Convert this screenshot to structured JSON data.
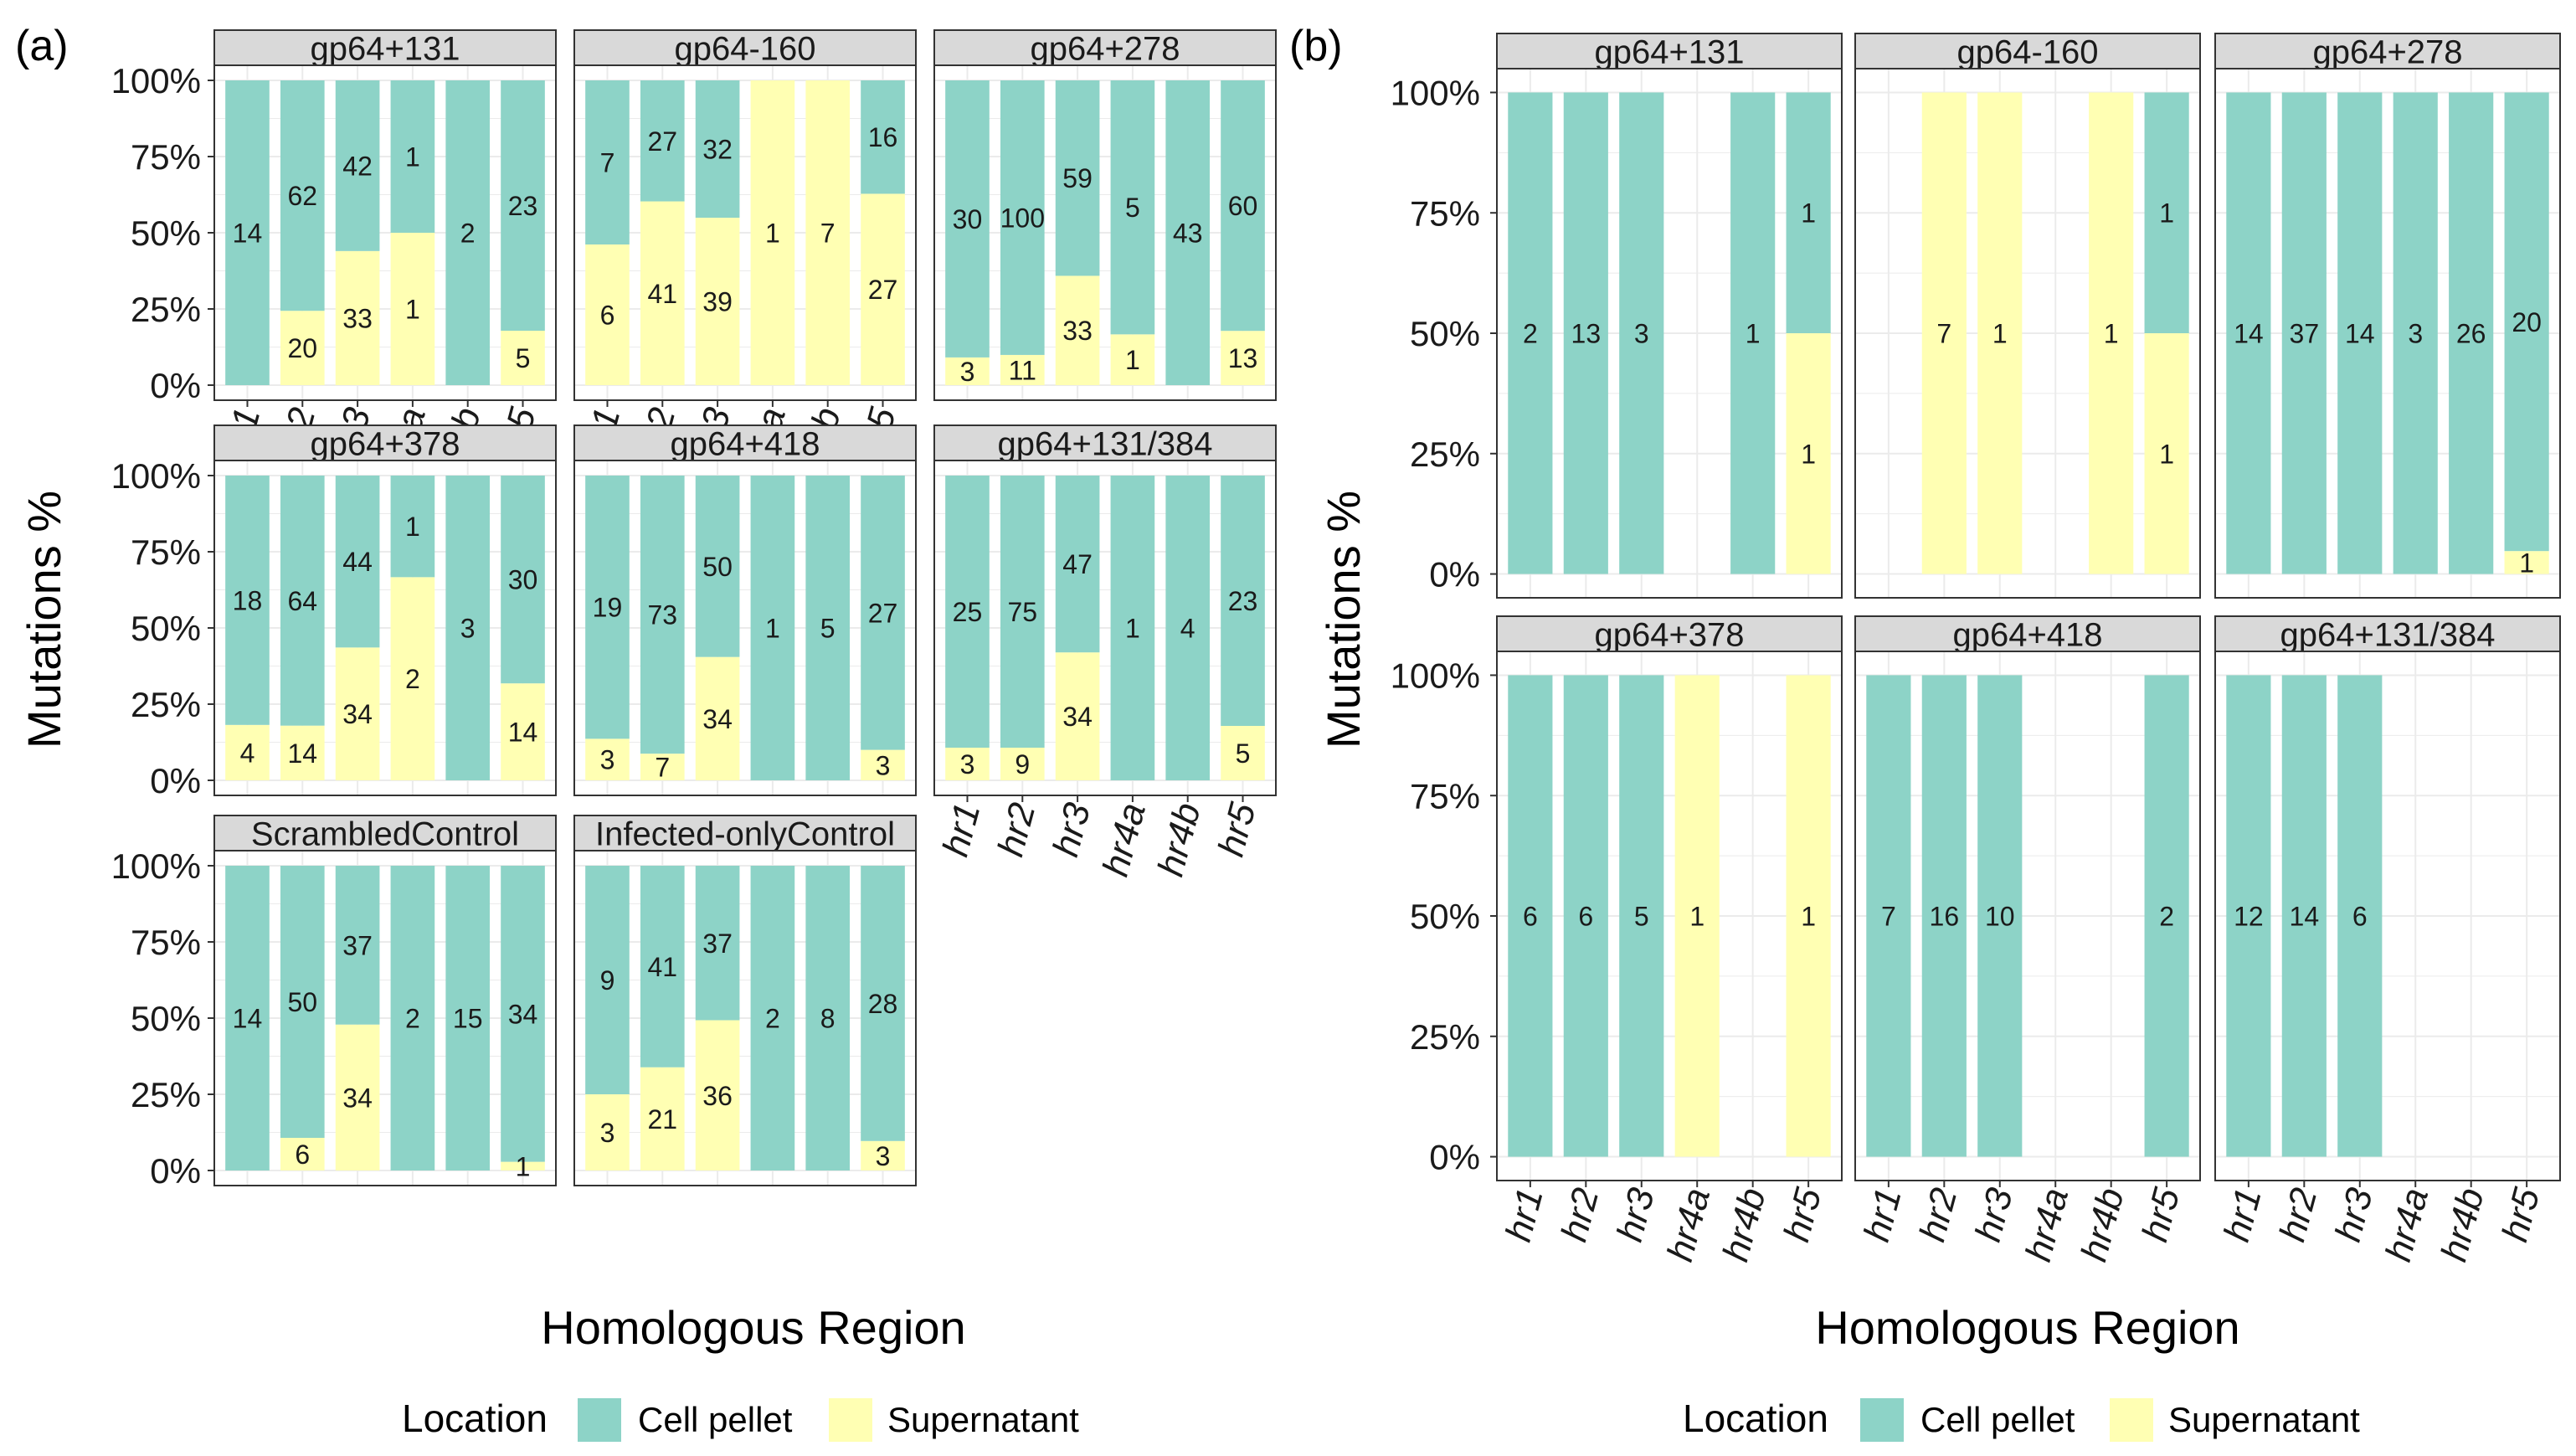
{
  "colors": {
    "cell_pellet": "#8DD3C7",
    "supernatant": "#FFFFB3",
    "strip": "#D9D9D9",
    "panel_border": "#333333",
    "grid": "#EBEBEB"
  },
  "figure": {
    "panel_a_label": "(a)",
    "panel_b_label": "(b)",
    "legend": {
      "title": "Location",
      "items": [
        {
          "name": "Cell pellet",
          "color": "#8DD3C7"
        },
        {
          "name": "Supernatant",
          "color": "#FFFFB3"
        }
      ]
    }
  },
  "chart_data": [
    {
      "id": "a",
      "type": "bar",
      "stacked": true,
      "title": "(a)",
      "xlabel": "Homologous Region",
      "ylabel": "Mutations %",
      "ylim": [
        0,
        100
      ],
      "yticks": [
        "0%",
        "25%",
        "50%",
        "75%",
        "100%"
      ],
      "categories": [
        "hr1",
        "hr2",
        "hr3",
        "hr4a",
        "hr4b",
        "hr5"
      ],
      "series_names": [
        "Cell pellet",
        "Supernatant"
      ],
      "facets": [
        {
          "name": "gp64+131",
          "cell": [
            14,
            62,
            42,
            1,
            2,
            23
          ],
          "sup": [
            0,
            20,
            33,
            1,
            0,
            5
          ]
        },
        {
          "name": "gp64-160",
          "cell": [
            7,
            27,
            32,
            0,
            0,
            16
          ],
          "sup": [
            6,
            41,
            39,
            1,
            7,
            27
          ]
        },
        {
          "name": "gp64+278",
          "cell": [
            30,
            100,
            59,
            5,
            43,
            60
          ],
          "sup": [
            3,
            11,
            33,
            1,
            0,
            13
          ]
        },
        {
          "name": "gp64+378",
          "cell": [
            18,
            64,
            44,
            1,
            3,
            30
          ],
          "sup": [
            4,
            14,
            34,
            2,
            0,
            14
          ]
        },
        {
          "name": "gp64+418",
          "cell": [
            19,
            73,
            50,
            1,
            5,
            27
          ],
          "sup": [
            3,
            7,
            34,
            0,
            0,
            3
          ]
        },
        {
          "name": "gp64+131/384",
          "cell": [
            25,
            75,
            47,
            1,
            4,
            23
          ],
          "sup": [
            3,
            9,
            34,
            0,
            0,
            5
          ]
        },
        {
          "name": "ScrambledControl",
          "cell": [
            14,
            50,
            37,
            2,
            15,
            34
          ],
          "sup": [
            0,
            6,
            34,
            0,
            0,
            1
          ]
        },
        {
          "name": "Infected-onlyControl",
          "cell": [
            9,
            41,
            37,
            2,
            8,
            28
          ],
          "sup": [
            3,
            21,
            36,
            0,
            0,
            3
          ]
        }
      ]
    },
    {
      "id": "b",
      "type": "bar",
      "stacked": true,
      "title": "(b)",
      "xlabel": "Homologous Region",
      "ylabel": "Mutations %",
      "ylim": [
        0,
        100
      ],
      "yticks": [
        "0%",
        "25%",
        "50%",
        "75%",
        "100%"
      ],
      "categories": [
        "hr1",
        "hr2",
        "hr3",
        "hr4a",
        "hr4b",
        "hr5"
      ],
      "series_names": [
        "Cell pellet",
        "Supernatant"
      ],
      "facets": [
        {
          "name": "gp64+131",
          "cell": [
            2,
            13,
            3,
            0,
            1,
            1
          ],
          "sup": [
            0,
            0,
            0,
            0,
            0,
            1
          ]
        },
        {
          "name": "gp64-160",
          "cell": [
            0,
            0,
            0,
            0,
            0,
            1
          ],
          "sup": [
            0,
            7,
            1,
            0,
            1,
            1
          ]
        },
        {
          "name": "gp64+278",
          "cell": [
            14,
            37,
            14,
            3,
            26,
            20
          ],
          "sup": [
            0,
            0,
            0,
            0,
            0,
            1
          ]
        },
        {
          "name": "gp64+378",
          "cell": [
            6,
            6,
            5,
            0,
            0,
            0
          ],
          "sup": [
            0,
            0,
            0,
            1,
            0,
            1
          ]
        },
        {
          "name": "gp64+418",
          "cell": [
            7,
            16,
            10,
            0,
            0,
            2
          ],
          "sup": [
            0,
            0,
            0,
            0,
            0,
            0
          ]
        },
        {
          "name": "gp64+131/384",
          "cell": [
            12,
            14,
            6,
            0,
            0,
            0
          ],
          "sup": [
            0,
            0,
            0,
            0,
            0,
            0
          ]
        }
      ]
    }
  ]
}
